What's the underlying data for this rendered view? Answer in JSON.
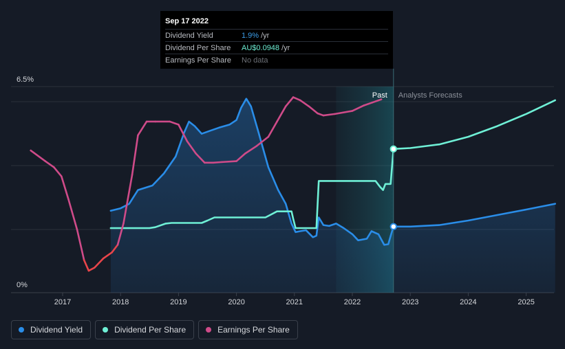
{
  "tooltip": {
    "date": "Sep 17 2022",
    "rows": [
      {
        "label": "Dividend Yield",
        "value": "1.9%",
        "unit": "/yr",
        "color": "#3d9fea"
      },
      {
        "label": "Dividend Per Share",
        "value": "AU$0.0948",
        "unit": "/yr",
        "color": "#6ff0d6"
      },
      {
        "label": "Earnings Per Share",
        "value": "No data",
        "unit": "",
        "color": "#6d7178"
      }
    ]
  },
  "legend": [
    {
      "label": "Dividend Yield",
      "color": "#2a8de8"
    },
    {
      "label": "Dividend Per Share",
      "color": "#6ff0d6"
    },
    {
      "label": "Earnings Per Share",
      "color": "#cf4b89"
    }
  ],
  "chart_data": {
    "type": "line",
    "y_top_label": "6.5%",
    "y_bottom_label": "0%",
    "ylim": [
      0,
      6.5
    ],
    "xlim": [
      2016.4,
      2025.5
    ],
    "x_ticks": [
      "2017",
      "2018",
      "2019",
      "2020",
      "2021",
      "2022",
      "2023",
      "2024",
      "2025"
    ],
    "past_label": "Past",
    "forecast_label": "Analysts Forecasts",
    "past_end": 2022.71,
    "forecast_start_region": 2021.72,
    "grid": true,
    "legend_position": "bottom-left",
    "series": [
      {
        "name": "Dividend Yield",
        "color": "#2a8de8",
        "area": true,
        "points": [
          [
            2017.83,
            2.42
          ],
          [
            2018.0,
            2.5
          ],
          [
            2018.15,
            2.65
          ],
          [
            2018.3,
            3.1
          ],
          [
            2018.55,
            3.25
          ],
          [
            2018.75,
            3.65
          ],
          [
            2018.95,
            4.2
          ],
          [
            2019.1,
            5.0
          ],
          [
            2019.18,
            5.35
          ],
          [
            2019.28,
            5.2
          ],
          [
            2019.4,
            4.95
          ],
          [
            2019.55,
            5.05
          ],
          [
            2019.7,
            5.15
          ],
          [
            2019.88,
            5.25
          ],
          [
            2020.0,
            5.4
          ],
          [
            2020.08,
            5.8
          ],
          [
            2020.17,
            6.1
          ],
          [
            2020.25,
            5.85
          ],
          [
            2020.38,
            5.0
          ],
          [
            2020.55,
            3.85
          ],
          [
            2020.72,
            3.1
          ],
          [
            2020.85,
            2.65
          ],
          [
            2020.95,
            2.0
          ],
          [
            2021.02,
            1.72
          ],
          [
            2021.1,
            1.75
          ],
          [
            2021.2,
            1.78
          ],
          [
            2021.32,
            1.55
          ],
          [
            2021.38,
            1.6
          ],
          [
            2021.42,
            2.2
          ],
          [
            2021.5,
            1.95
          ],
          [
            2021.6,
            1.92
          ],
          [
            2021.72,
            2.0
          ],
          [
            2021.85,
            1.85
          ],
          [
            2022.0,
            1.65
          ],
          [
            2022.1,
            1.45
          ],
          [
            2022.25,
            1.5
          ],
          [
            2022.33,
            1.75
          ],
          [
            2022.45,
            1.65
          ],
          [
            2022.55,
            1.3
          ],
          [
            2022.62,
            1.32
          ],
          [
            2022.67,
            1.65
          ],
          [
            2022.71,
            1.9
          ]
        ]
      },
      {
        "name": "Dividend Yield forecast",
        "color": "#2a8de8",
        "area": true,
        "points": [
          [
            2022.71,
            1.9
          ],
          [
            2023.0,
            1.9
          ],
          [
            2023.5,
            1.95
          ],
          [
            2024.0,
            2.1
          ],
          [
            2024.5,
            2.28
          ],
          [
            2025.0,
            2.46
          ],
          [
            2025.5,
            2.65
          ]
        ]
      },
      {
        "name": "Dividend Per Share",
        "color": "#6ff0d6",
        "area": false,
        "points": [
          [
            2017.83,
            1.85
          ],
          [
            2018.5,
            1.85
          ],
          [
            2018.6,
            1.88
          ],
          [
            2018.78,
            2.0
          ],
          [
            2018.88,
            2.02
          ],
          [
            2019.4,
            2.02
          ],
          [
            2019.5,
            2.1
          ],
          [
            2019.62,
            2.2
          ],
          [
            2020.2,
            2.2
          ],
          [
            2020.5,
            2.2
          ],
          [
            2020.6,
            2.3
          ],
          [
            2020.7,
            2.4
          ],
          [
            2020.95,
            2.4
          ],
          [
            2020.98,
            2.15
          ],
          [
            2021.02,
            1.85
          ],
          [
            2021.38,
            1.85
          ],
          [
            2021.42,
            3.4
          ],
          [
            2022.4,
            3.4
          ],
          [
            2022.48,
            3.2
          ],
          [
            2022.53,
            3.1
          ],
          [
            2022.57,
            3.3
          ],
          [
            2022.66,
            3.3
          ],
          [
            2022.71,
            4.45
          ]
        ]
      },
      {
        "name": "Dividend Per Share forecast",
        "color": "#6ff0d6",
        "area": false,
        "points": [
          [
            2022.71,
            4.45
          ],
          [
            2023.0,
            4.48
          ],
          [
            2023.5,
            4.6
          ],
          [
            2024.0,
            4.85
          ],
          [
            2024.5,
            5.2
          ],
          [
            2025.0,
            5.6
          ],
          [
            2025.5,
            6.05
          ]
        ]
      },
      {
        "name": "Earnings Per Share",
        "color": "#cf4b89",
        "low_color": "#e8454a",
        "low_threshold": 1.3,
        "area": false,
        "points": [
          [
            2016.45,
            4.4
          ],
          [
            2016.7,
            4.05
          ],
          [
            2016.85,
            3.85
          ],
          [
            2016.98,
            3.55
          ],
          [
            2017.1,
            2.8
          ],
          [
            2017.25,
            1.8
          ],
          [
            2017.37,
            0.8
          ],
          [
            2017.45,
            0.45
          ],
          [
            2017.55,
            0.55
          ],
          [
            2017.7,
            0.85
          ],
          [
            2017.85,
            1.05
          ],
          [
            2017.95,
            1.3
          ],
          [
            2018.05,
            2.0
          ],
          [
            2018.2,
            3.6
          ],
          [
            2018.3,
            4.9
          ],
          [
            2018.45,
            5.35
          ],
          [
            2018.6,
            5.35
          ],
          [
            2018.85,
            5.35
          ],
          [
            2019.0,
            5.25
          ],
          [
            2019.15,
            4.7
          ],
          [
            2019.3,
            4.3
          ],
          [
            2019.45,
            4.0
          ],
          [
            2019.6,
            4.0
          ],
          [
            2019.75,
            4.02
          ],
          [
            2020.0,
            4.05
          ],
          [
            2020.15,
            4.3
          ],
          [
            2020.35,
            4.55
          ],
          [
            2020.55,
            4.85
          ],
          [
            2020.7,
            5.35
          ],
          [
            2020.85,
            5.85
          ],
          [
            2020.98,
            6.15
          ],
          [
            2021.1,
            6.05
          ],
          [
            2021.25,
            5.85
          ],
          [
            2021.4,
            5.62
          ],
          [
            2021.5,
            5.55
          ],
          [
            2021.7,
            5.6
          ],
          [
            2022.0,
            5.7
          ],
          [
            2022.2,
            5.88
          ],
          [
            2022.35,
            5.98
          ],
          [
            2022.5,
            6.08
          ]
        ]
      }
    ],
    "markers": [
      {
        "x": 2022.71,
        "y": 4.45,
        "color": "#6ff0d6"
      },
      {
        "x": 2022.71,
        "y": 1.9,
        "color": "#2a8de8"
      }
    ]
  }
}
